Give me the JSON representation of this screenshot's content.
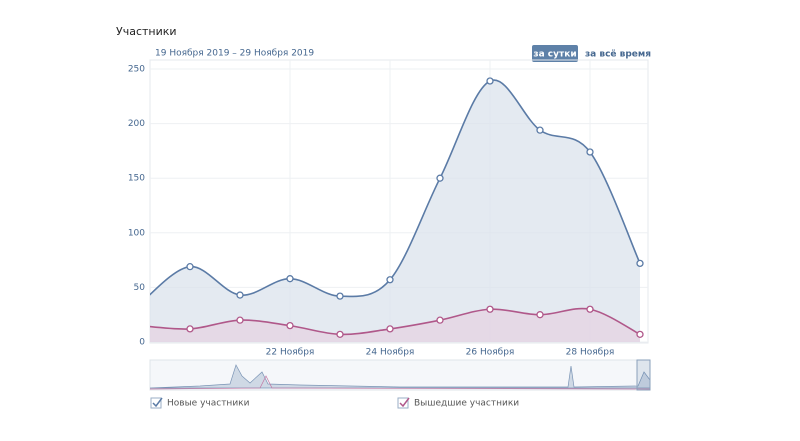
{
  "header": {
    "title": "Участники",
    "period": "19 Ноября 2019 – 29 Ноября 2019",
    "buttons": [
      "за сутки",
      "за всё время"
    ]
  },
  "chart_data": {
    "type": "line",
    "x": [
      19,
      20,
      21,
      22,
      23,
      24,
      25,
      26,
      27,
      28,
      29
    ],
    "xlim": [
      19.2,
      29.16
    ],
    "xticks": [
      {
        "value": 22,
        "label": "22 Ноября"
      },
      {
        "value": 24,
        "label": "24 Ноября"
      },
      {
        "value": 26,
        "label": "26 Ноября"
      },
      {
        "value": 28,
        "label": "28 Ноября"
      }
    ],
    "ylim": [
      0,
      250
    ],
    "yticks": [
      0,
      50,
      100,
      150,
      200,
      250
    ],
    "grid": true,
    "series": [
      {
        "name": "Новые участники",
        "color": "#5b7ba6",
        "fill": "#dbe3ec",
        "values": [
          35,
          69,
          43,
          58,
          42,
          57,
          150,
          239,
          194,
          174,
          72
        ]
      },
      {
        "name": "Вышедшие участники",
        "color": "#b0588a",
        "fill": "#e6d3e2",
        "values": [
          15,
          12,
          20,
          15,
          7,
          12,
          20,
          30,
          25,
          30,
          7
        ]
      }
    ]
  }
}
